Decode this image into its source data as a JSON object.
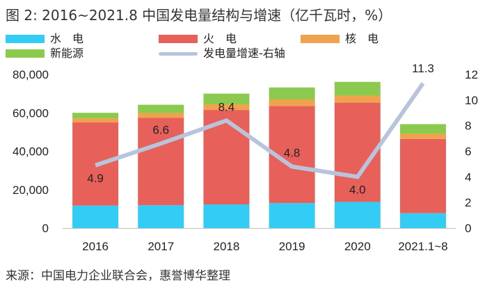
{
  "title": "图 2: 2016~2021.8 中国发电量结构与增速（亿千瓦时，%）",
  "source": "来源：中国电力企业联合会，惠誉博华整理",
  "legend": [
    {
      "label": "水　电",
      "color": "#33ccf5",
      "kind": "box"
    },
    {
      "label": "火　电",
      "color": "#e8605a",
      "kind": "box"
    },
    {
      "label": "核　电",
      "color": "#f0a24d",
      "kind": "box"
    },
    {
      "label": "新能源",
      "color": "#8cc94f",
      "kind": "box"
    },
    {
      "label": "发电量增速-右轴",
      "color": "#b8c3dc",
      "kind": "line"
    }
  ],
  "chart_data": {
    "type": "bar",
    "stacked": true,
    "categories": [
      "2016",
      "2017",
      "2018",
      "2019",
      "2020",
      "2021.1~8"
    ],
    "series": [
      {
        "name": "水　电",
        "color": "#33ccf5",
        "values": [
          11700,
          11900,
          12300,
          13000,
          13600,
          7700
        ]
      },
      {
        "name": "火　电",
        "color": "#e8605a",
        "values": [
          43300,
          45500,
          49200,
          50500,
          51700,
          38700
        ]
      },
      {
        "name": "核　电",
        "color": "#f0a24d",
        "values": [
          2130,
          2480,
          2950,
          3480,
          3660,
          2680
        ]
      },
      {
        "name": "新能源",
        "color": "#8cc94f",
        "values": [
          2870,
          4320,
          5550,
          6220,
          7140,
          5020
        ]
      }
    ],
    "line_series": {
      "name": "发电量增速-右轴",
      "color": "#b8c3dc",
      "axis": "right",
      "values": [
        4.9,
        6.6,
        8.4,
        4.8,
        4.0,
        11.3
      ],
      "labels": [
        "4.9",
        "6.6",
        "8.4",
        "4.8",
        "4.0",
        "11.3"
      ]
    },
    "ylim": [
      0,
      80000
    ],
    "yticks": [
      "0",
      "20,000",
      "40,000",
      "60,000",
      "80,000"
    ],
    "y2lim": [
      0,
      12
    ],
    "y2ticks": [
      "0",
      "2",
      "4",
      "6",
      "8",
      "10",
      "12"
    ],
    "grid": false,
    "legend_position": "top"
  }
}
